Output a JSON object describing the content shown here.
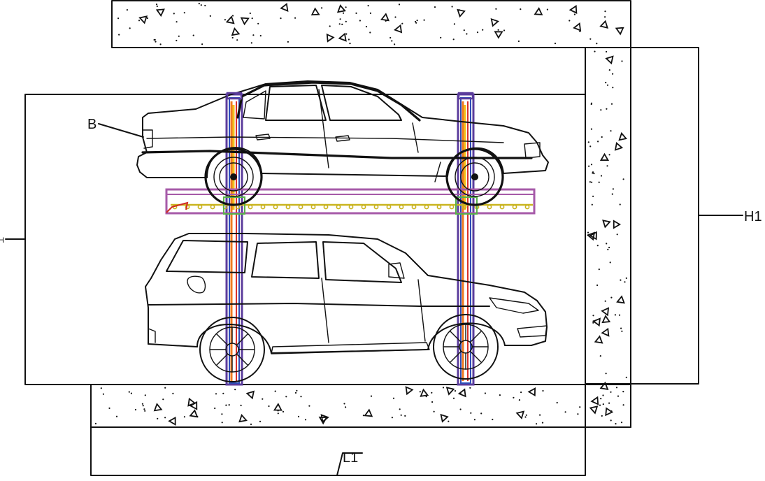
{
  "labels": {
    "b": "B",
    "h": "H",
    "h1": "H1",
    "l1": "L1"
  },
  "colors": {
    "post_purple": "#5b3c9c",
    "post_blue": "#2f4db8",
    "post_orange": "#ef7b22",
    "post_red": "#d9302a",
    "post_yellow": "#f2c21c",
    "platform_violet": "#a65aa8",
    "platform_yellow": "#c9b420",
    "platform_red": "#d02a20",
    "platform_green": "#58b24a",
    "hatch": "#111111"
  },
  "icons": {
    "upper_car": "sedan-car-icon",
    "lower_car": "suv-car-icon",
    "lift": "two-post-parking-lift-icon"
  }
}
